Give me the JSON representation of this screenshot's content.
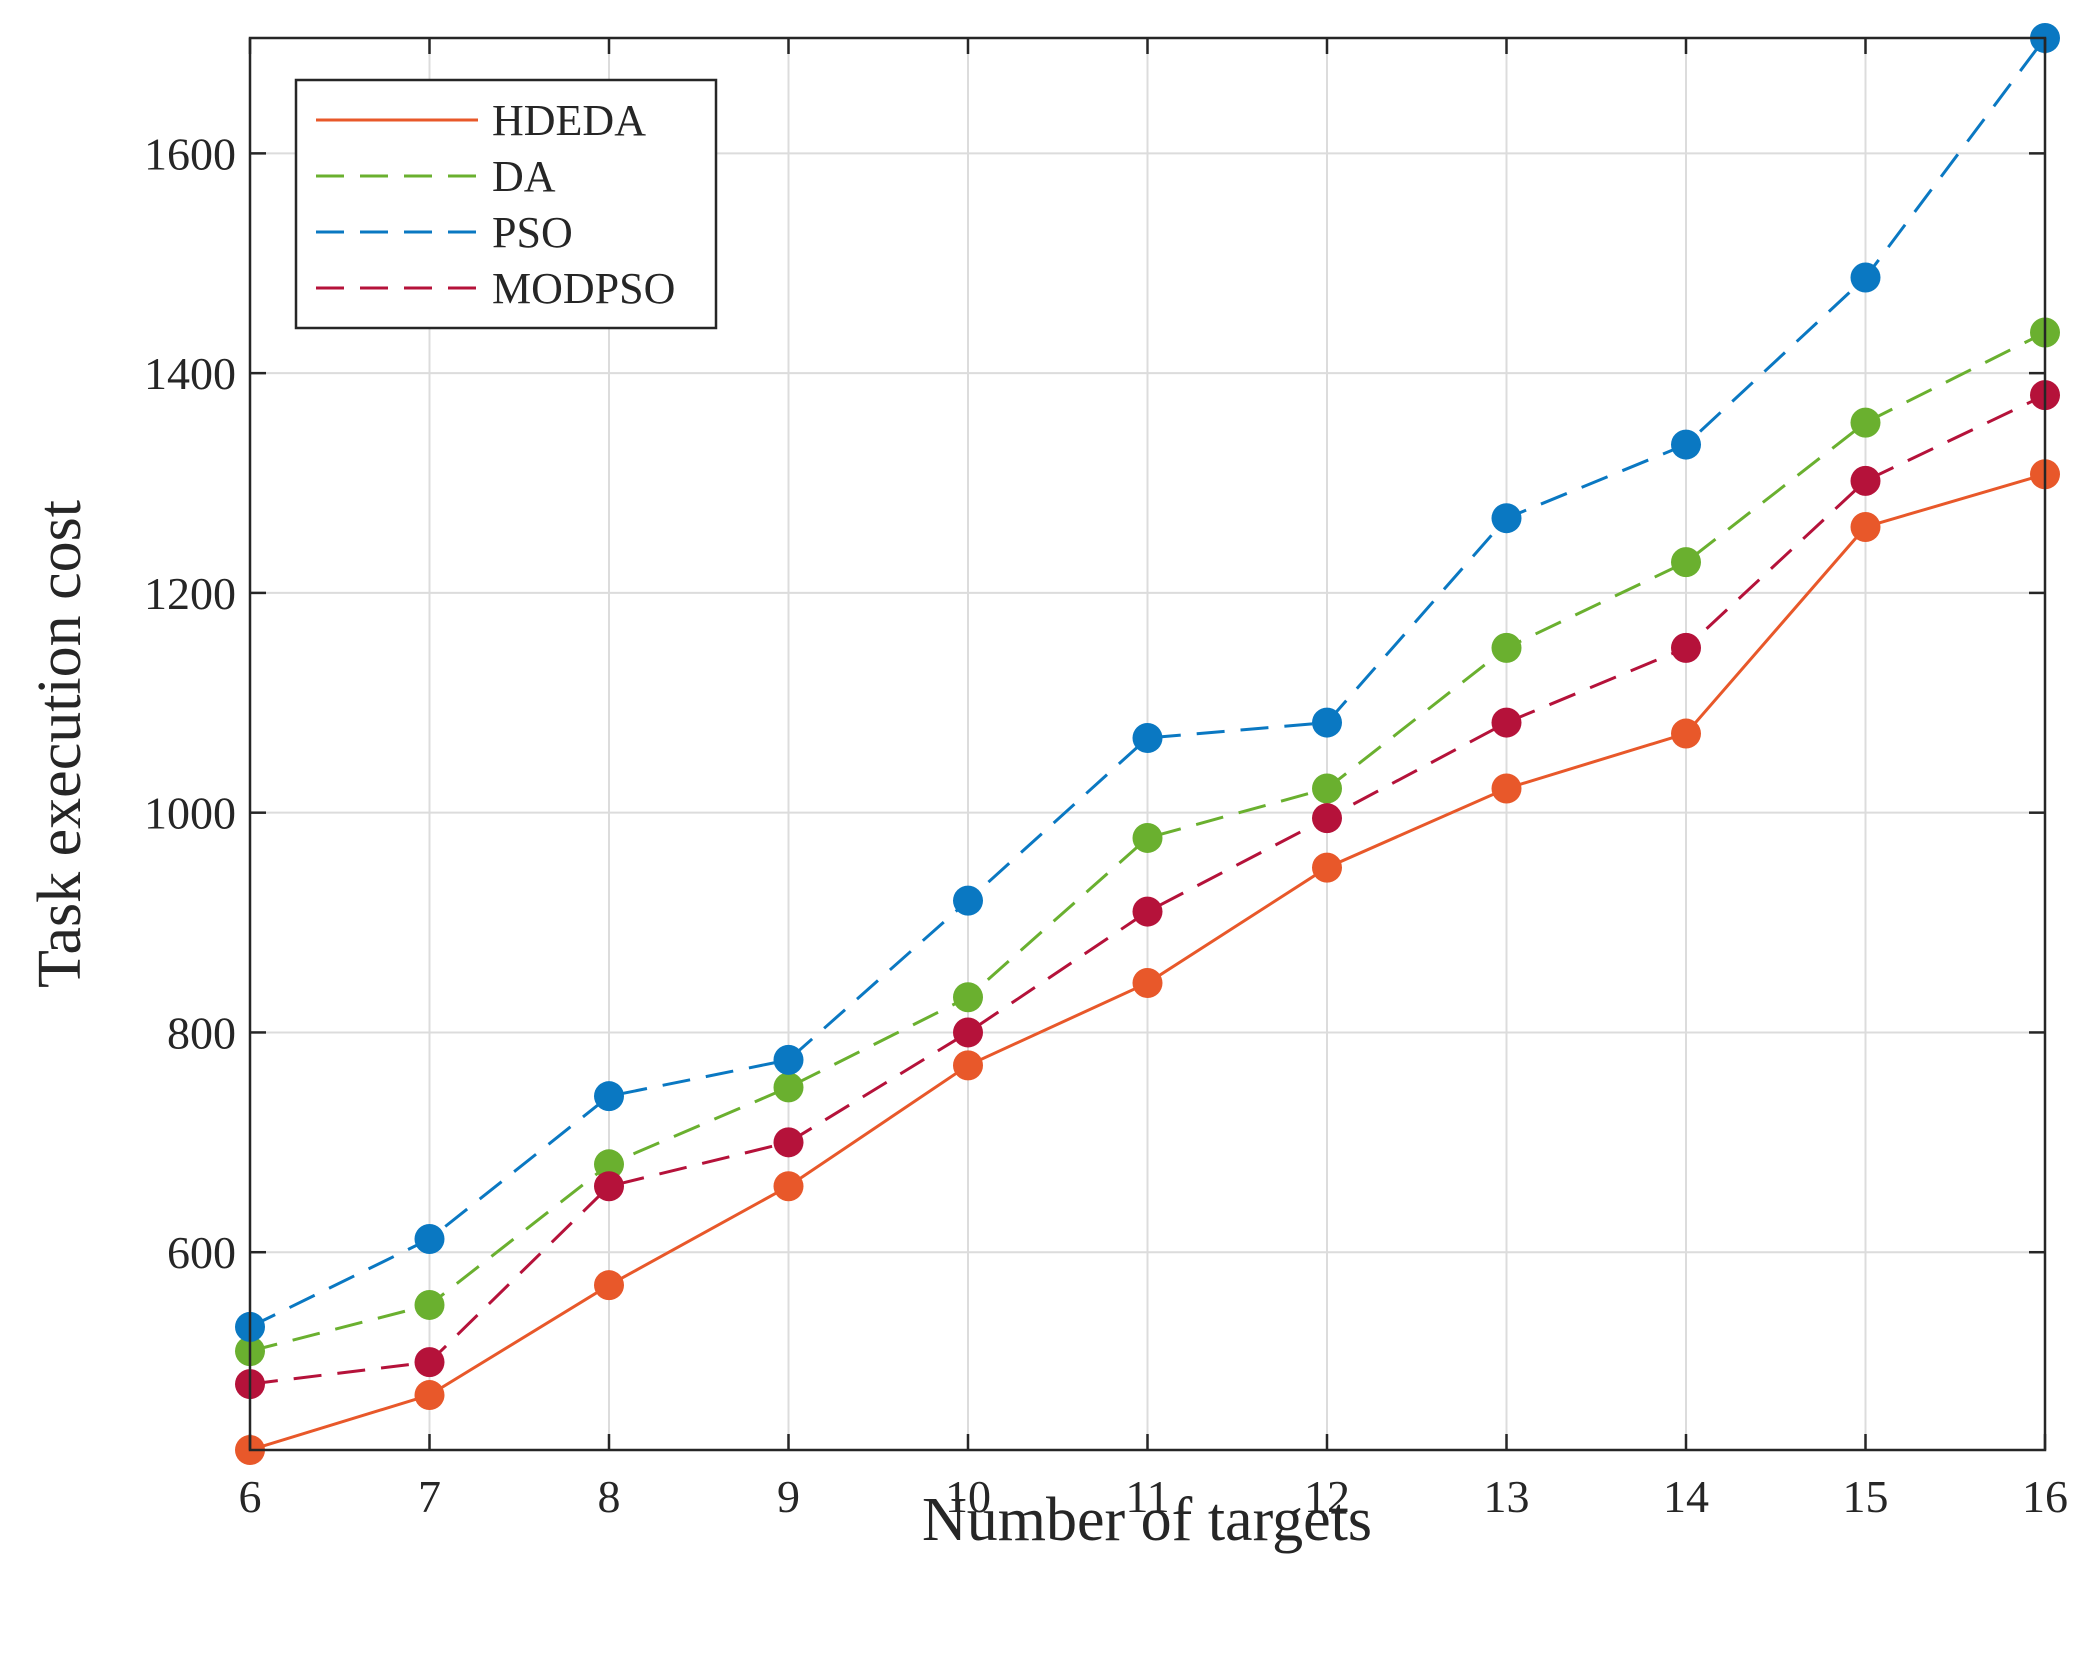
{
  "chart_data": {
    "type": "line",
    "title": "",
    "xlabel": "Number of targets",
    "ylabel": "Task execution cost",
    "x": [
      6,
      7,
      8,
      9,
      10,
      11,
      12,
      13,
      14,
      15,
      16
    ],
    "xlim": [
      6,
      16
    ],
    "ylim": [
      420,
      1705
    ],
    "xticks": [
      6,
      7,
      8,
      9,
      10,
      11,
      12,
      13,
      14,
      15,
      16
    ],
    "xtick_labels": [
      "6",
      "7",
      "8",
      "9",
      "10",
      "11",
      "12",
      "13",
      "14",
      "15",
      "16"
    ],
    "yticks": [
      600,
      800,
      1000,
      1200,
      1400,
      1600
    ],
    "ytick_labels": [
      "600",
      "800",
      "1000",
      "1200",
      "1400",
      "1600"
    ],
    "grid": true,
    "legend_position": "top-left",
    "series": [
      {
        "name": "HDEDA",
        "color": "#E8582A",
        "dash": "solid",
        "values": [
          420,
          470,
          570,
          660,
          770,
          845,
          950,
          1022,
          1072,
          1260,
          1308
        ]
      },
      {
        "name": "DA",
        "color": "#6AB02F",
        "dash": "dashed",
        "values": [
          510,
          552,
          680,
          750,
          832,
          977,
          1022,
          1150,
          1228,
          1355,
          1437
        ]
      },
      {
        "name": "PSO",
        "color": "#0A78C2",
        "dash": "dashed",
        "values": [
          532,
          612,
          742,
          775,
          920,
          1068,
          1082,
          1268,
          1335,
          1487,
          1705
        ]
      },
      {
        "name": "MODPSO",
        "color": "#B5123A",
        "dash": "dashed",
        "values": [
          480,
          500,
          660,
          700,
          800,
          910,
          995,
          1082,
          1150,
          1302,
          1380
        ]
      }
    ]
  }
}
